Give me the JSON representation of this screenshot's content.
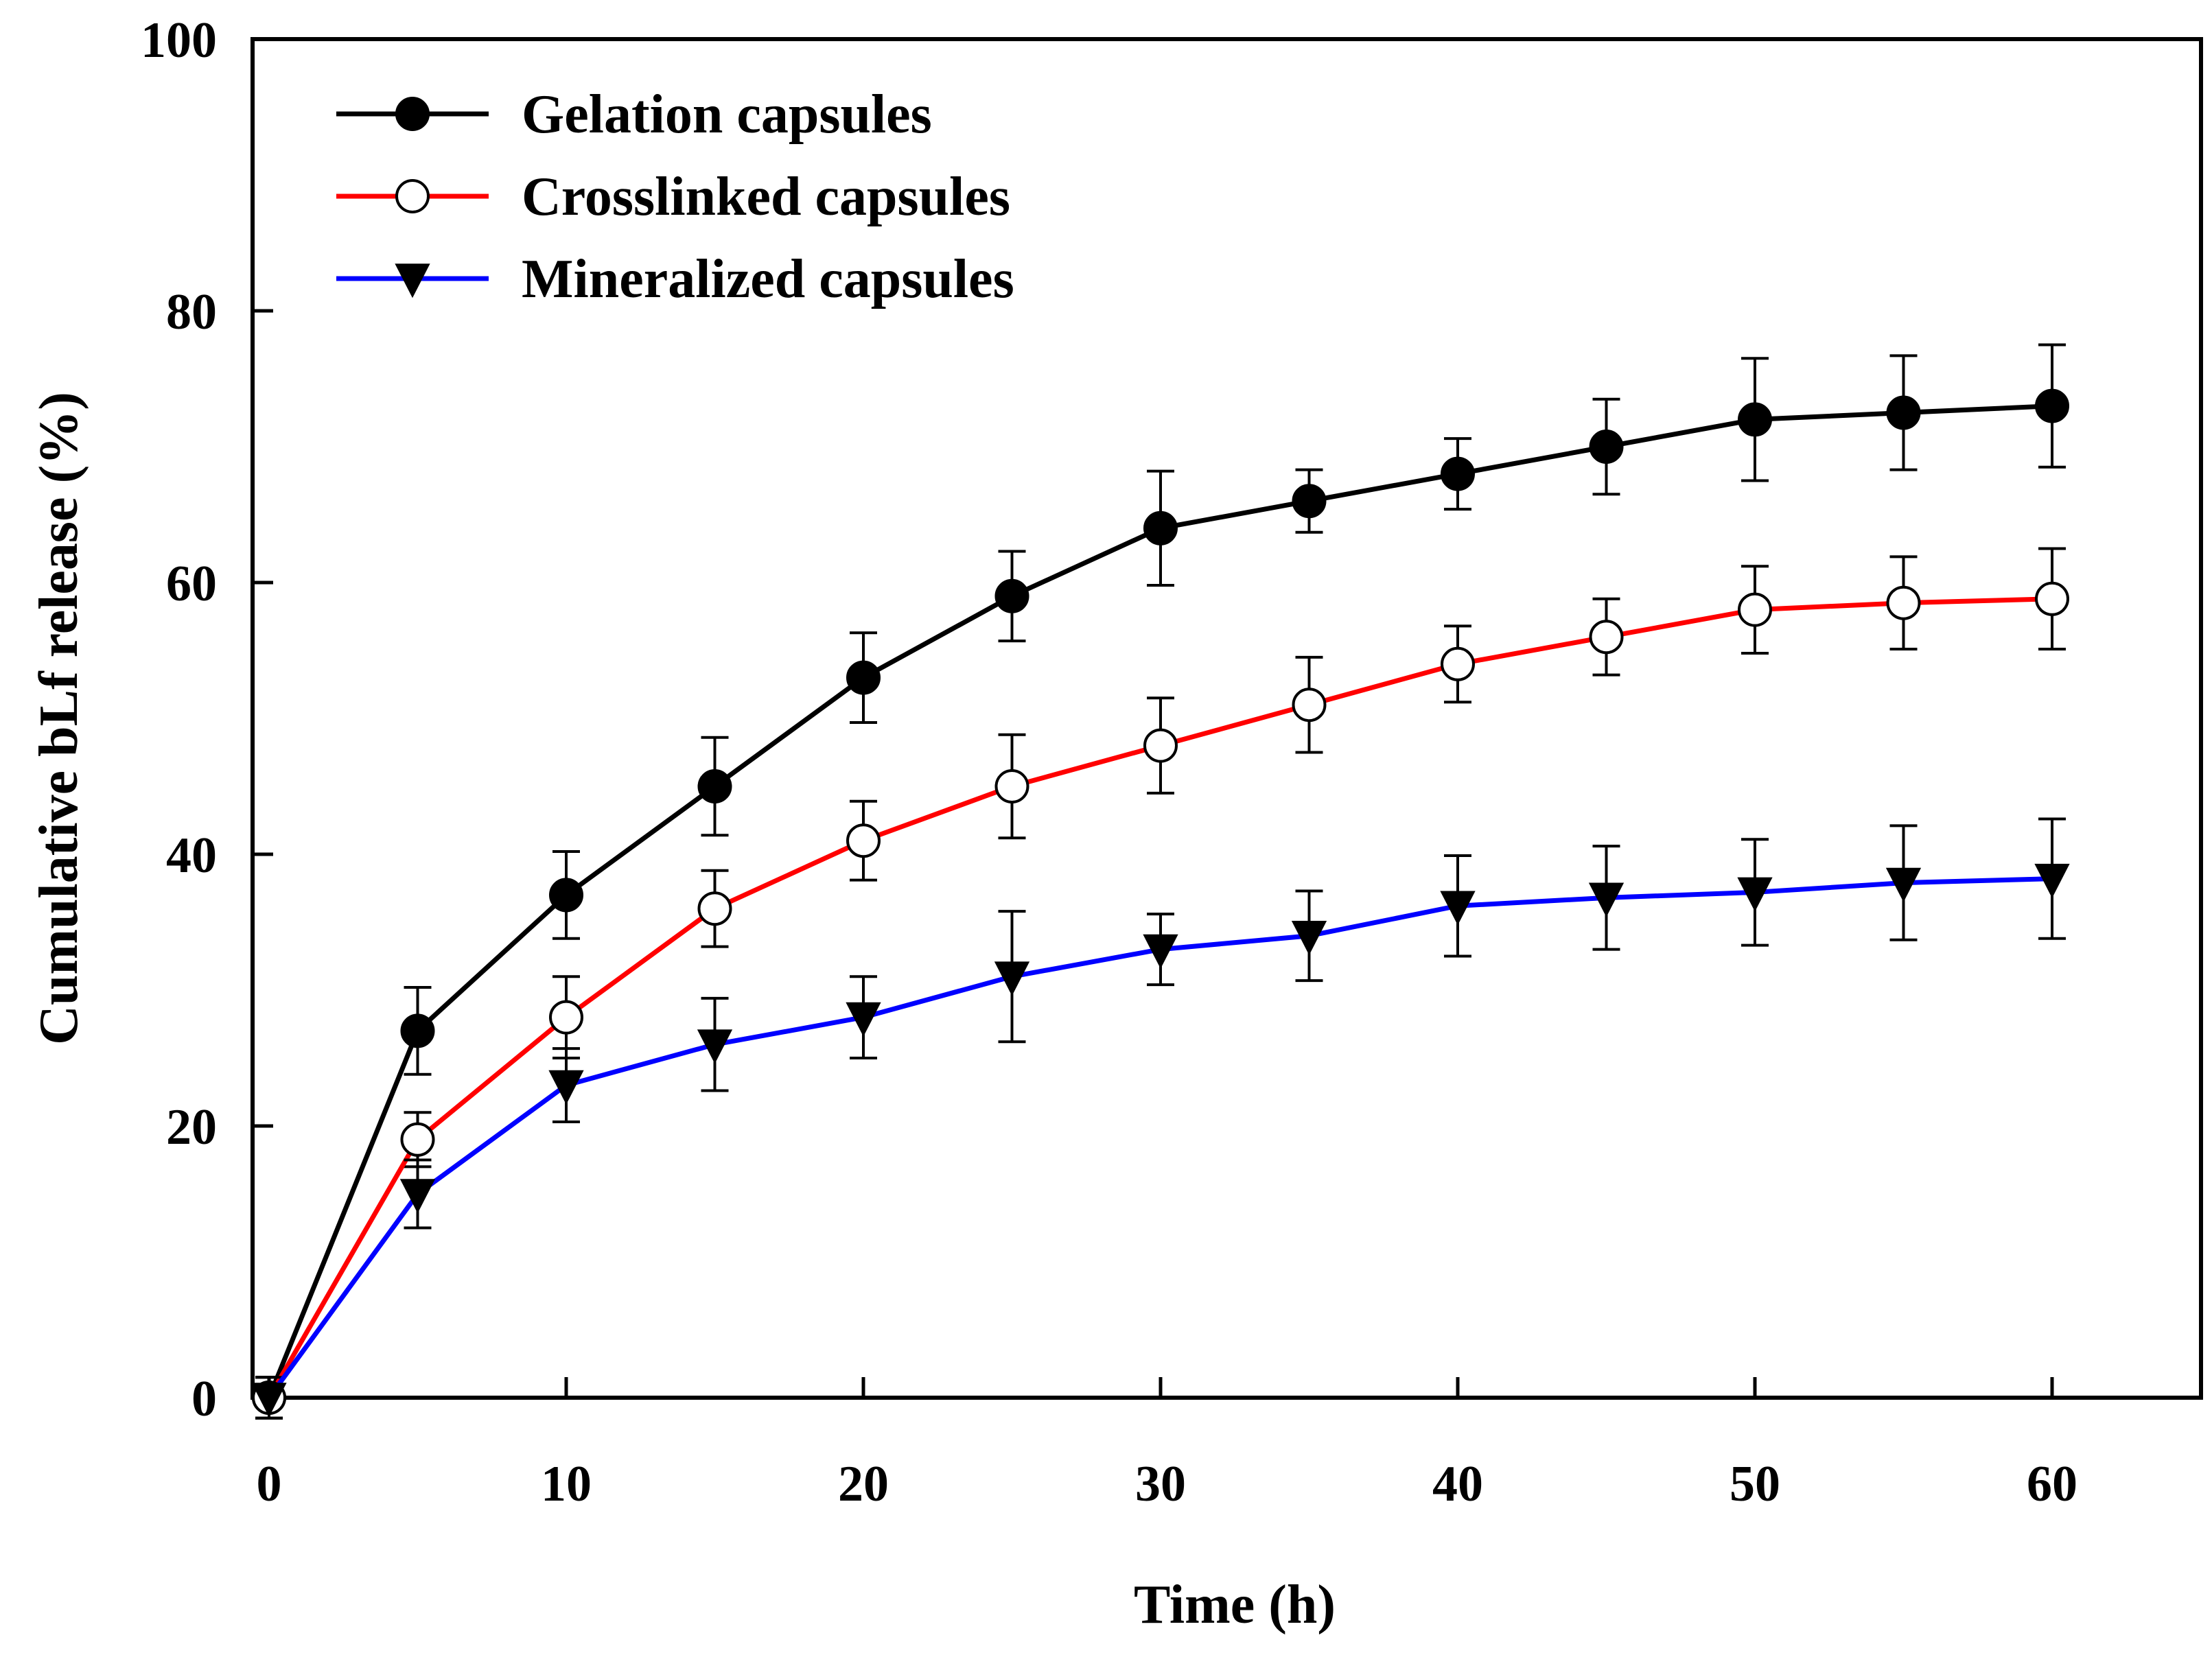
{
  "chart_data": {
    "type": "line",
    "title": "",
    "xlabel": "Time (h)",
    "ylabel": "Cumulative bLf release (%)",
    "xlim": [
      0,
      65
    ],
    "ylim": [
      0,
      100
    ],
    "xticks": [
      0,
      10,
      20,
      30,
      40,
      50,
      60
    ],
    "yticks": [
      0,
      20,
      40,
      60,
      80,
      100
    ],
    "xtick_labels": [
      "0",
      "10",
      "20",
      "30",
      "40",
      "50",
      "60"
    ],
    "ytick_labels": [
      "0",
      "20",
      "40",
      "60",
      "80",
      "100"
    ],
    "grid": false,
    "legend_position": "top-left",
    "x": [
      0,
      5,
      10,
      15,
      20,
      25,
      30,
      35,
      40,
      45,
      50,
      55,
      60
    ],
    "series": [
      {
        "name": "Gelation capsules",
        "color": "#000000",
        "marker": "filled-circle",
        "values": [
          0,
          27,
          37,
          45,
          53,
          59,
          64,
          66,
          68,
          70,
          72,
          72.5,
          73
        ],
        "errors": [
          1.5,
          3.2,
          3.2,
          3.6,
          3.3,
          3.3,
          4.2,
          2.3,
          2.6,
          3.5,
          4.5,
          4.2,
          4.5
        ]
      },
      {
        "name": "Crosslinked capsules",
        "color": "#ff0000",
        "marker": "open-circle",
        "values": [
          0,
          19,
          28,
          36,
          41,
          45,
          48,
          51,
          54,
          56,
          58,
          58.5,
          58.8
        ],
        "errors": [
          1.5,
          2.0,
          3.0,
          2.8,
          2.9,
          3.8,
          3.5,
          3.5,
          2.8,
          2.8,
          3.2,
          3.4,
          3.7
        ]
      },
      {
        "name": "Mineralized capsules",
        "color": "#0000ff",
        "marker": "filled-triangle-down",
        "values": [
          0,
          15,
          23,
          26,
          28,
          31,
          33,
          34,
          36.2,
          36.8,
          37.2,
          37.9,
          38.2
        ],
        "errors": [
          1.5,
          2.5,
          2.7,
          3.4,
          3.0,
          4.8,
          2.6,
          3.3,
          3.7,
          3.8,
          3.9,
          4.2,
          4.4
        ]
      }
    ]
  }
}
